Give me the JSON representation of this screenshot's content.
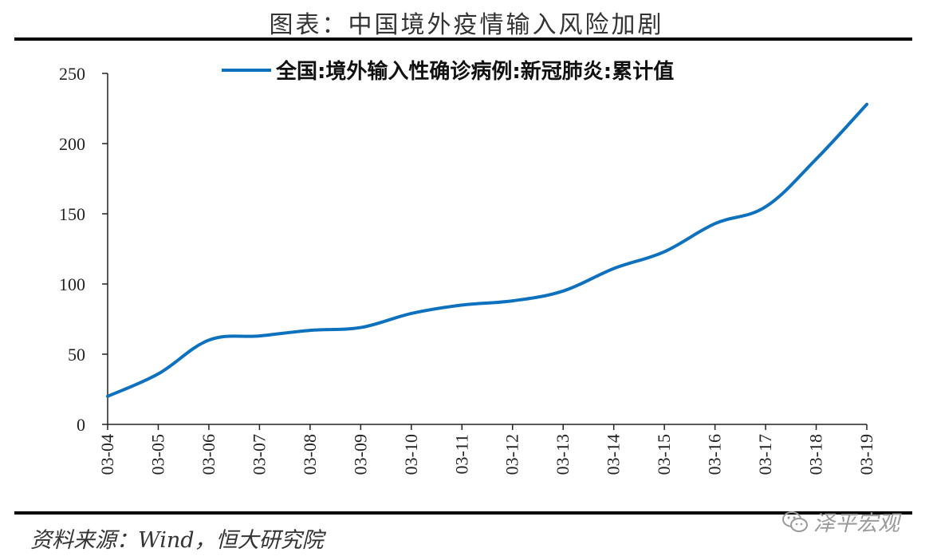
{
  "figure_title": "图表：中国境外疫情输入风险加剧",
  "source_note": "资料来源：Wind，恒大研究院",
  "watermark": {
    "text": "泽平宏观",
    "icon": "wechat-icon"
  },
  "colors": {
    "series": "#0e71bd",
    "axis": "#222222",
    "rule": "#000000"
  },
  "chart_data": {
    "type": "line",
    "title": "",
    "xlabel": "",
    "ylabel": "",
    "categories": [
      "03-04",
      "03-05",
      "03-06",
      "03-07",
      "03-08",
      "03-09",
      "03-10",
      "03-11",
      "03-12",
      "03-13",
      "03-14",
      "03-15",
      "03-16",
      "03-17",
      "03-18",
      "03-19"
    ],
    "y_ticks": [
      0,
      50,
      100,
      150,
      200,
      250
    ],
    "ylim": [
      0,
      250
    ],
    "grid": false,
    "legend_position": "top",
    "series": [
      {
        "name": "全国:境外输入性确诊病例:新冠肺炎:累计值",
        "values": [
          20,
          36,
          60,
          63,
          67,
          69,
          79,
          85,
          88,
          95,
          111,
          123,
          143,
          155,
          189,
          228
        ]
      }
    ]
  }
}
